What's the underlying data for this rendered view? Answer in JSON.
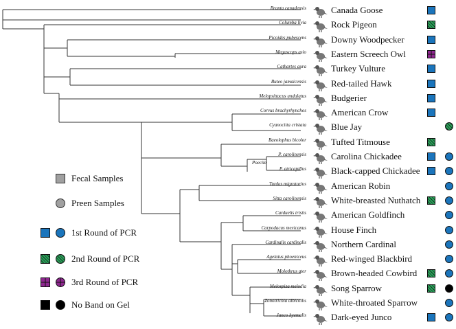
{
  "taxa": [
    {
      "sci": "Branta canadensis",
      "common": "Canada Goose",
      "fecal": "first",
      "preen": null
    },
    {
      "sci": "Columba livia",
      "common": "Rock Pigeon",
      "fecal": "second",
      "preen": null
    },
    {
      "sci": "Picoides pubescens",
      "common": "Downy Woodpecker",
      "fecal": "first",
      "preen": null
    },
    {
      "sci": "Megascops asio",
      "common": "Eastern Screech Owl",
      "fecal": "third",
      "preen": null
    },
    {
      "sci": "Cathartes aura",
      "common": "Turkey Vulture",
      "fecal": "first",
      "preen": null
    },
    {
      "sci": "Buteo jamaicensis",
      "common": "Red-tailed Hawk",
      "fecal": "first",
      "preen": null
    },
    {
      "sci": "Melopsittacus undulatus",
      "common": "Budgerier",
      "fecal": "first",
      "preen": null
    },
    {
      "sci": "Corvus brachyrhynchos",
      "common": "American Crow",
      "fecal": "first",
      "preen": null
    },
    {
      "sci": "Cyanocitta cristata",
      "common": "Blue Jay",
      "fecal": null,
      "preen": "second"
    },
    {
      "sci": "Baeolophus bicolor",
      "common": "Tufted Titmouse",
      "fecal": "second",
      "preen": null
    },
    {
      "sci": "P. carolinensis",
      "common": "Carolina Chickadee",
      "fecal": "first",
      "preen": "first"
    },
    {
      "sci": "P. atricapillus",
      "common": "Black-capped Chickadee",
      "fecal": "first",
      "preen": "first"
    },
    {
      "sci": "Turdus migratorius",
      "common": "American Robin",
      "fecal": null,
      "preen": "first"
    },
    {
      "sci": "Sitta carolinensis",
      "common": "White-breasted Nuthatch",
      "fecal": "second",
      "preen": "first"
    },
    {
      "sci": "Carduelis tristis",
      "common": "American Goldfinch",
      "fecal": null,
      "preen": "first"
    },
    {
      "sci": "Carpodacus mexicanus",
      "common": "House Finch",
      "fecal": null,
      "preen": "first"
    },
    {
      "sci": "Cardinalis cardinalis",
      "common": "Northern Cardinal",
      "fecal": null,
      "preen": "first"
    },
    {
      "sci": "Agelaius phoeniceus",
      "common": "Red-winged Blackbird",
      "fecal": null,
      "preen": "first"
    },
    {
      "sci": "Molothrus ater",
      "common": "Brown-headed Cowbird",
      "fecal": "second",
      "preen": "first"
    },
    {
      "sci": "Melospiza melodia",
      "common": "Song Sparrow",
      "fecal": "second",
      "preen": "nogel"
    },
    {
      "sci": "Zonotrichia albicollis",
      "common": "White-throated Sparrow",
      "fecal": null,
      "preen": "first"
    },
    {
      "sci": "Junco hyemalis",
      "common": "Dark-eyed Junco",
      "fecal": "first",
      "preen": "first"
    }
  ],
  "clade_label": "Poecile",
  "legend": {
    "fecal": "Fecal Samples",
    "preen": "Preen Samples",
    "first": "1st Round of PCR",
    "second": "2nd Round of PCR",
    "third": "3rd Round of PCR",
    "nogel": "No Band on Gel"
  },
  "colors": {
    "first": "#1b75bc",
    "second": "#2e9e5b",
    "third": "#8e278f",
    "nogel": "#000000",
    "legend_grey": "#a0a0a0"
  }
}
